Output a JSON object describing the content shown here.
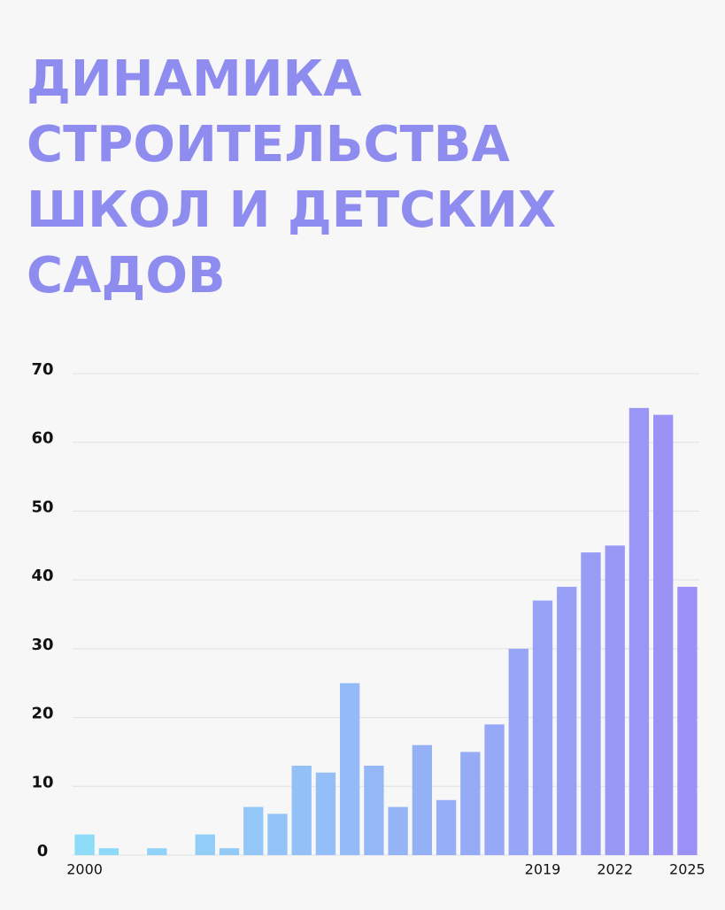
{
  "chart_data": {
    "type": "bar",
    "title": [
      "ДИНАМИКА",
      "СТРОИТЕЛЬСТВА",
      "ШКОЛ И ДЕТСКИХ",
      "САДОВ"
    ],
    "categories": [
      "2000",
      null,
      null,
      null,
      null,
      null,
      null,
      null,
      null,
      null,
      null,
      null,
      null,
      null,
      null,
      null,
      null,
      null,
      null,
      "2019",
      null,
      null,
      "2022",
      null,
      null,
      "2025"
    ],
    "values": [
      3,
      1,
      0,
      1,
      0,
      3,
      1,
      7,
      6,
      13,
      12,
      25,
      13,
      7,
      16,
      8,
      15,
      19,
      30,
      37,
      39,
      44,
      45,
      65,
      64,
      39
    ],
    "gradient": [
      "#8fdcf8",
      "#9a90f5"
    ],
    "ylim": [
      0,
      70
    ],
    "yticks": [
      0,
      10,
      20,
      30,
      40,
      50,
      60,
      70
    ],
    "grid": true
  }
}
